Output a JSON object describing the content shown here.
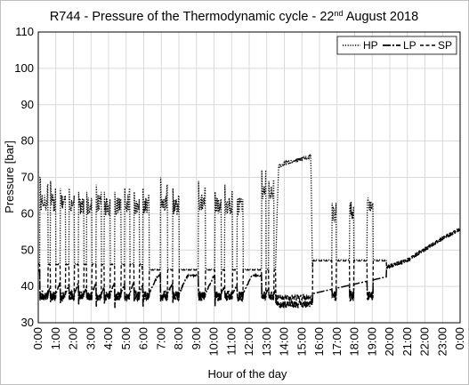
{
  "chart_data": {
    "type": "line",
    "title": "R744 - Pressure of the Thermodynamic cycle - 22",
    "title_superscript": "nd",
    "title_suffix": " August 2018",
    "xlabel": "Hour of the day",
    "ylabel": "Pressure [bar]",
    "ylim": [
      30,
      110
    ],
    "yticks": [
      30,
      40,
      50,
      60,
      70,
      80,
      90,
      100,
      110
    ],
    "xlim": [
      0,
      24
    ],
    "xticks": [
      "0:00",
      "1:00",
      "2:00",
      "3:00",
      "4:00",
      "5:00",
      "6:00",
      "7:00",
      "8:00",
      "9:00",
      "10:00",
      "11:00",
      "12:00",
      "13:00",
      "14:00",
      "15:00",
      "16:00",
      "17:00",
      "18:00",
      "19:00",
      "20:00",
      "21:00",
      "22:00",
      "23:00",
      "0:00"
    ],
    "grid": true,
    "legend_position": "top-right",
    "series": [
      {
        "name": "HP",
        "style": "dotted",
        "cycles": [
          {
            "on": [
              0.1,
              0.55
            ],
            "level": 63,
            "peak": 70
          },
          {
            "on": [
              0.7,
              1.0
            ],
            "level": 63,
            "peak": 69
          },
          {
            "on": [
              1.25,
              1.55
            ],
            "level": 63,
            "peak": 67
          },
          {
            "on": [
              1.75,
              2.05
            ],
            "level": 63,
            "peak": 67
          },
          {
            "on": [
              2.3,
              2.6
            ],
            "level": 62,
            "peak": 66
          },
          {
            "on": [
              2.75,
              3.05
            ],
            "level": 62,
            "peak": 66
          },
          {
            "on": [
              3.3,
              3.6
            ],
            "level": 63,
            "peak": 68
          },
          {
            "on": [
              3.75,
              4.1
            ],
            "level": 62,
            "peak": 66
          },
          {
            "on": [
              4.35,
              4.7
            ],
            "level": 62,
            "peak": 66
          },
          {
            "on": [
              4.9,
              5.2
            ],
            "level": 63,
            "peak": 69
          },
          {
            "on": [
              5.45,
              5.75
            ],
            "level": 62,
            "peak": 66
          },
          {
            "on": [
              5.95,
              6.3
            ],
            "level": 62,
            "peak": 67
          },
          {
            "on": [
              6.95,
              7.35
            ],
            "level": 63,
            "peak": 70
          },
          {
            "on": [
              7.65,
              8.0
            ],
            "level": 62,
            "peak": 67
          },
          {
            "on": [
              9.1,
              9.5
            ],
            "level": 63,
            "peak": 69
          },
          {
            "on": [
              10.05,
              10.4
            ],
            "level": 62,
            "peak": 66
          },
          {
            "on": [
              10.6,
              11.05
            ],
            "level": 62,
            "peak": 68
          },
          {
            "on": [
              11.3,
              11.65
            ],
            "level": 62,
            "peak": 66
          },
          {
            "on": [
              12.7,
              12.95
            ],
            "level": 66,
            "peak": 74
          },
          {
            "on": [
              13.1,
              13.4
            ],
            "level": 65,
            "peak": 71
          },
          {
            "on": [
              13.5,
              15.6
            ],
            "level": 73,
            "peak": 76,
            "ramp": true
          },
          {
            "on": [
              16.7,
              16.95
            ],
            "level": 60,
            "peak": 65
          },
          {
            "on": [
              17.7,
              17.95
            ],
            "level": 61,
            "peak": 64
          },
          {
            "on": [
              18.7,
              19.05
            ],
            "level": 62,
            "peak": 65
          }
        ]
      },
      {
        "name": "LP",
        "style": "long-dash-dot",
        "on_level": 37.5,
        "long_on_level": 35,
        "tail": [
          [
            19.8,
            45
          ],
          [
            21.0,
            47
          ],
          [
            22.0,
            50
          ],
          [
            23.0,
            53
          ],
          [
            24.0,
            55.5
          ]
        ]
      },
      {
        "name": "SP",
        "style": "dashed",
        "on_level": 46,
        "off_level": 44,
        "tail": [
          [
            19.8,
            45.5
          ],
          [
            21.0,
            47.5
          ],
          [
            22.0,
            50.5
          ],
          [
            23.0,
            53.5
          ],
          [
            24.0,
            56
          ]
        ]
      }
    ]
  }
}
